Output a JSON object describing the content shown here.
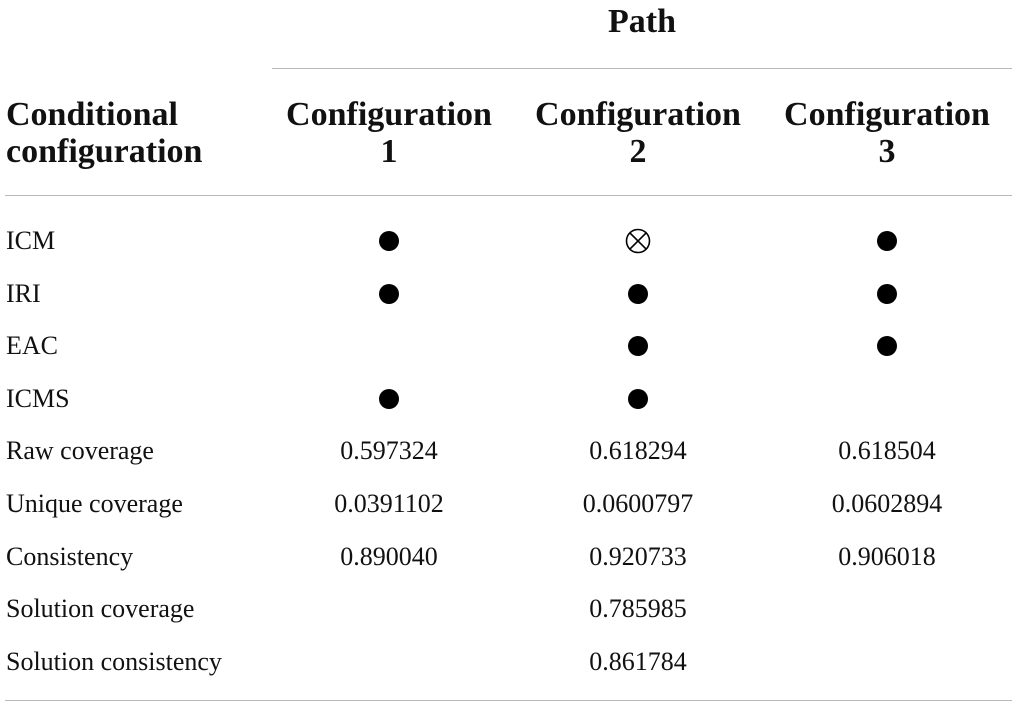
{
  "table": {
    "path_header": "Path",
    "stub_header": [
      "Conditional",
      "configuration"
    ],
    "columns": [
      [
        "Configuration",
        "1"
      ],
      [
        "Configuration",
        "2"
      ],
      [
        "Configuration",
        "3"
      ]
    ],
    "rows": [
      {
        "label": "ICM",
        "cells": [
          "present",
          "absent",
          "present"
        ]
      },
      {
        "label": "IRI",
        "cells": [
          "present",
          "present",
          "present"
        ]
      },
      {
        "label": "EAC",
        "cells": [
          "",
          "present",
          "present"
        ]
      },
      {
        "label": "ICMS",
        "cells": [
          "present",
          "present",
          ""
        ]
      },
      {
        "label": "Raw coverage",
        "cells": [
          "0.597324",
          "0.618294",
          "0.618504"
        ]
      },
      {
        "label": "Unique coverage",
        "cells": [
          "0.0391102",
          "0.0600797",
          "0.0602894"
        ]
      },
      {
        "label": "Consistency",
        "cells": [
          "0.890040",
          "0.920733",
          "0.906018"
        ]
      },
      {
        "label": "Solution coverage",
        "cells": [
          "",
          "0.785985",
          ""
        ]
      },
      {
        "label": "Solution consistency",
        "cells": [
          "",
          "0.861784",
          ""
        ]
      }
    ],
    "symbols": {
      "present": "filled-circle-icon",
      "absent": "crossed-circle-icon"
    },
    "rule_color": "#b8b8b8"
  }
}
